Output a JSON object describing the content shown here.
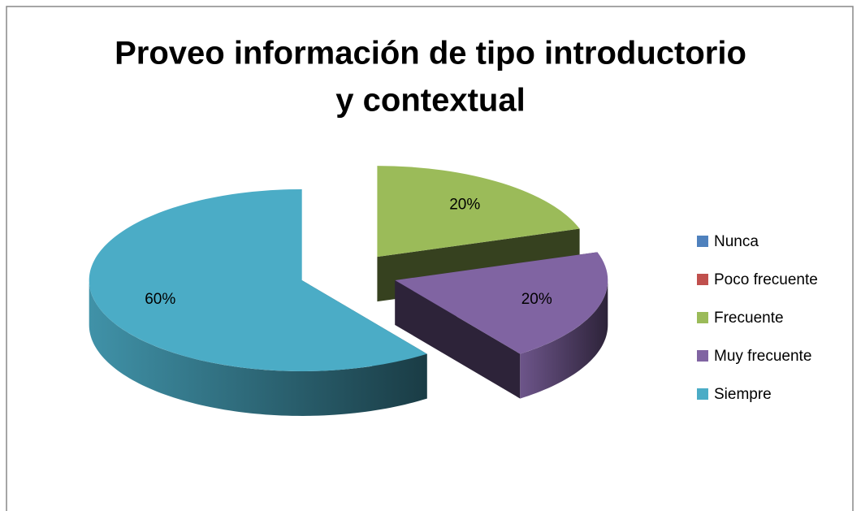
{
  "chart_data": {
    "type": "pie",
    "title": [
      "Proveo información de tipo introductorio",
      "y contextual"
    ],
    "categories": [
      "Nunca",
      "Poco frecuente",
      "Frecuente",
      "Muy frecuente",
      "Siempre"
    ],
    "values": [
      0,
      0,
      20,
      20,
      60
    ],
    "value_labels": [
      null,
      null,
      "20%",
      "20%",
      "60%"
    ],
    "colors": [
      "#4f81bd",
      "#c0504d",
      "#9bbb59",
      "#8064a2",
      "#4bacc6"
    ],
    "legend": "right"
  }
}
